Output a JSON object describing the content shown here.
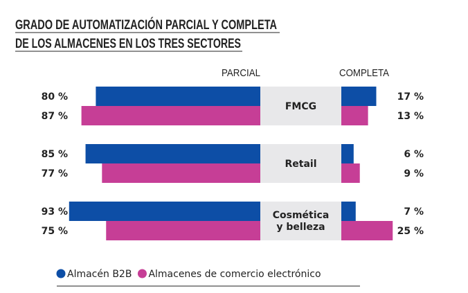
{
  "chart_data": {
    "type": "bar",
    "title": [
      "GRADO DE AUTOMATIZACIÓN PARCIAL Y COMPLETA",
      "DE LOS ALMACENES EN LOS TRES SECTORES"
    ],
    "column_headers": {
      "left": "PARCIAL",
      "right": "COMPLETA"
    },
    "categories": [
      [
        "FMCG"
      ],
      [
        "Retail"
      ],
      [
        "Cosmética",
        "y belleza"
      ]
    ],
    "unit": "%",
    "series": [
      {
        "name": "Almacén B2B",
        "color": "#0d4ea6",
        "parcial": [
          80,
          85,
          93
        ],
        "completa": [
          17,
          6,
          7
        ]
      },
      {
        "name": "Almacenes de comercio electrónico",
        "color": "#c63e96",
        "parcial": [
          87,
          77,
          75
        ],
        "completa": [
          13,
          9,
          25
        ]
      }
    ],
    "category_box_color": "#e8e8ea",
    "xlim": [
      0,
      100
    ],
    "legend": "bottom-left",
    "grid": false
  }
}
